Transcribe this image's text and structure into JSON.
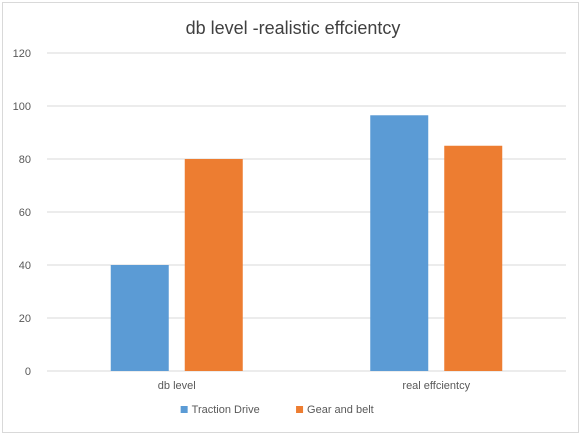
{
  "chart_data": {
    "type": "bar",
    "title": "db level -realistic effcientcy",
    "xlabel": "",
    "ylabel": "",
    "categories": [
      "db level",
      "real effcientcy"
    ],
    "series": [
      {
        "name": "Traction Drive",
        "color": "#5b9bd5",
        "values": [
          40,
          96.5
        ]
      },
      {
        "name": "Gear and belt",
        "color": "#ed7d31",
        "values": [
          80,
          85
        ]
      }
    ],
    "ylim": [
      0,
      120
    ],
    "yticks": [
      0,
      20,
      40,
      60,
      80,
      100,
      120
    ],
    "grid": true,
    "legend_position": "bottom"
  }
}
